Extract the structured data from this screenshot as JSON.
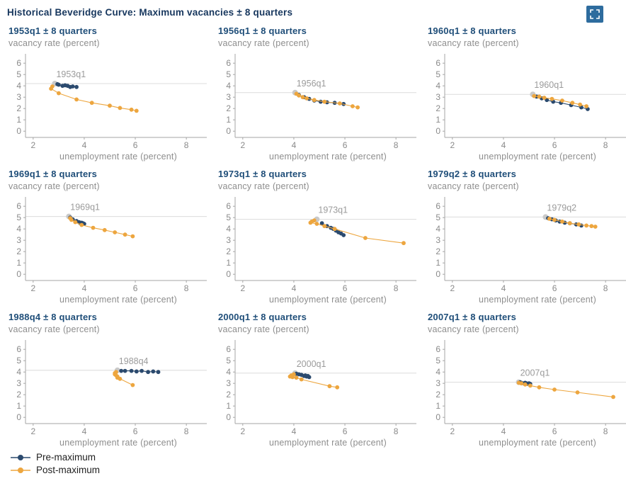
{
  "header": {
    "title": "Historical Beveridge Curve: Maximum vacancies ± 8 quarters"
  },
  "labels": {
    "ylabel": "vacancy rate (percent)",
    "xlabel": "unemployment rate (percent)"
  },
  "legend": {
    "items": [
      {
        "label": "Pre-maximum",
        "color": "#2b4a6e"
      },
      {
        "label": "Post-maximum",
        "color": "#eda63f"
      }
    ]
  },
  "colors": {
    "pre": "#2b4a6e",
    "post": "#eda63f",
    "axis": "#a6a6a6",
    "max_dot": "#c9c9c9",
    "max_line": "#dcdcdc",
    "icon_blue": "#2e6c9e"
  },
  "axes": {
    "x_range": [
      1.7,
      8.8
    ],
    "y_range": [
      -0.55,
      6.7
    ],
    "x_ticks": [
      2,
      4,
      6,
      8
    ],
    "y_ticks": [
      0,
      1,
      2,
      3,
      4,
      5,
      6
    ]
  },
  "chart_data": [
    {
      "type": "line",
      "title": "1953q1 ± 8 quarters",
      "annotation": "1953q1",
      "xlabel": "unemployment rate (percent)",
      "ylabel": "vacancy rate (percent)",
      "max_point": {
        "u": 2.85,
        "v": 4.2
      },
      "series": [
        {
          "name": "Pre-maximum",
          "points": [
            [
              3.7,
              3.9
            ],
            [
              3.55,
              3.95
            ],
            [
              3.45,
              3.9
            ],
            [
              3.35,
              4.0
            ],
            [
              3.25,
              4.05
            ],
            [
              3.15,
              4.0
            ],
            [
              3.0,
              4.1
            ],
            [
              2.95,
              4.15
            ]
          ]
        },
        {
          "name": "Post-maximum",
          "points": [
            [
              2.75,
              3.95
            ],
            [
              2.7,
              3.75
            ],
            [
              3.0,
              3.35
            ],
            [
              3.7,
              2.8
            ],
            [
              4.3,
              2.5
            ],
            [
              5.0,
              2.25
            ],
            [
              5.4,
              2.05
            ],
            [
              5.85,
              1.9
            ],
            [
              6.05,
              1.8
            ]
          ]
        }
      ]
    },
    {
      "type": "line",
      "title": "1956q1 ± 8 quarters",
      "annotation": "1956q1",
      "xlabel": "unemployment rate (percent)",
      "ylabel": "vacancy rate (percent)",
      "max_point": {
        "u": 4.05,
        "v": 3.4
      },
      "series": [
        {
          "name": "Pre-maximum",
          "points": [
            [
              5.95,
              2.4
            ],
            [
              5.6,
              2.5
            ],
            [
              5.3,
              2.55
            ],
            [
              5.05,
              2.6
            ],
            [
              4.8,
              2.7
            ],
            [
              4.6,
              2.85
            ],
            [
              4.4,
              3.0
            ],
            [
              4.2,
              3.2
            ]
          ]
        },
        {
          "name": "Post-maximum",
          "points": [
            [
              4.1,
              3.3
            ],
            [
              4.2,
              3.15
            ],
            [
              4.35,
              3.0
            ],
            [
              4.5,
              2.9
            ],
            [
              4.8,
              2.75
            ],
            [
              5.2,
              2.6
            ],
            [
              5.8,
              2.45
            ],
            [
              6.3,
              2.2
            ],
            [
              6.5,
              2.1
            ]
          ]
        }
      ]
    },
    {
      "type": "line",
      "title": "1960q1 ± 8 quarters",
      "annotation": "1960q1",
      "xlabel": "unemployment rate (percent)",
      "ylabel": "vacancy rate (percent)",
      "max_point": {
        "u": 5.15,
        "v": 3.25
      },
      "series": [
        {
          "name": "Pre-maximum",
          "points": [
            [
              7.3,
              1.95
            ],
            [
              7.05,
              2.1
            ],
            [
              6.65,
              2.3
            ],
            [
              6.25,
              2.5
            ],
            [
              5.95,
              2.6
            ],
            [
              5.7,
              2.75
            ],
            [
              5.5,
              2.9
            ],
            [
              5.3,
              3.05
            ]
          ]
        },
        {
          "name": "Post-maximum",
          "points": [
            [
              5.2,
              3.1
            ],
            [
              5.4,
              3.05
            ],
            [
              5.6,
              2.95
            ],
            [
              5.9,
              2.85
            ],
            [
              6.3,
              2.7
            ],
            [
              6.7,
              2.5
            ],
            [
              7.0,
              2.35
            ],
            [
              7.25,
              2.2
            ]
          ]
        }
      ]
    },
    {
      "type": "line",
      "title": "1969q1 ± 8 quarters",
      "annotation": "1969q1",
      "xlabel": "unemployment rate (percent)",
      "ylabel": "vacancy rate (percent)",
      "max_point": {
        "u": 3.4,
        "v": 5.1
      },
      "series": [
        {
          "name": "Pre-maximum",
          "points": [
            [
              4.0,
              4.45
            ],
            [
              3.95,
              4.5
            ],
            [
              3.9,
              4.55
            ],
            [
              3.85,
              4.5
            ],
            [
              3.8,
              4.6
            ],
            [
              3.7,
              4.7
            ],
            [
              3.55,
              4.85
            ],
            [
              3.45,
              5.0
            ]
          ]
        },
        {
          "name": "Post-maximum",
          "points": [
            [
              3.45,
              4.95
            ],
            [
              3.5,
              4.8
            ],
            [
              3.65,
              4.6
            ],
            [
              3.9,
              4.35
            ],
            [
              4.35,
              4.1
            ],
            [
              4.8,
              3.9
            ],
            [
              5.2,
              3.7
            ],
            [
              5.6,
              3.5
            ],
            [
              5.9,
              3.35
            ]
          ]
        }
      ]
    },
    {
      "type": "line",
      "title": "1973q1 ± 8 quarters",
      "annotation": "1973q1",
      "xlabel": "unemployment rate (percent)",
      "ylabel": "vacancy rate (percent)",
      "max_point": {
        "u": 4.9,
        "v": 4.85
      },
      "series": [
        {
          "name": "Pre-maximum",
          "points": [
            [
              5.95,
              3.45
            ],
            [
              5.85,
              3.6
            ],
            [
              5.75,
              3.7
            ],
            [
              5.65,
              3.85
            ],
            [
              5.55,
              4.0
            ],
            [
              5.45,
              4.1
            ],
            [
              5.3,
              4.25
            ],
            [
              5.1,
              4.5
            ]
          ]
        },
        {
          "name": "Post-maximum",
          "points": [
            [
              4.8,
              4.75
            ],
            [
              4.7,
              4.65
            ],
            [
              4.65,
              4.55
            ],
            [
              4.9,
              4.45
            ],
            [
              5.2,
              4.25
            ],
            [
              5.6,
              4.0
            ],
            [
              6.8,
              3.2
            ],
            [
              8.3,
              2.75
            ]
          ]
        }
      ]
    },
    {
      "type": "line",
      "title": "1979q2 ± 8 quarters",
      "annotation": "1979q2",
      "xlabel": "unemployment rate (percent)",
      "ylabel": "vacancy rate (percent)",
      "max_point": {
        "u": 5.65,
        "v": 5.05
      },
      "series": [
        {
          "name": "Pre-maximum",
          "points": [
            [
              7.05,
              4.3
            ],
            [
              6.85,
              4.4
            ],
            [
              6.6,
              4.5
            ],
            [
              6.4,
              4.55
            ],
            [
              6.2,
              4.65
            ],
            [
              6.05,
              4.75
            ],
            [
              5.9,
              4.85
            ],
            [
              5.75,
              4.95
            ]
          ]
        },
        {
          "name": "Post-maximum",
          "points": [
            [
              5.8,
              4.9
            ],
            [
              6.0,
              4.8
            ],
            [
              6.3,
              4.65
            ],
            [
              6.6,
              4.5
            ],
            [
              6.95,
              4.4
            ],
            [
              7.25,
              4.3
            ],
            [
              7.45,
              4.25
            ],
            [
              7.6,
              4.2
            ]
          ]
        }
      ]
    },
    {
      "type": "line",
      "title": "1988q4 ± 8 quarters",
      "annotation": "1988q4",
      "xlabel": "unemployment rate (percent)",
      "ylabel": "vacancy rate (percent)",
      "max_point": {
        "u": 5.3,
        "v": 4.15
      },
      "series": [
        {
          "name": "Pre-maximum",
          "points": [
            [
              6.9,
              4.0
            ],
            [
              6.7,
              4.05
            ],
            [
              6.5,
              4.0
            ],
            [
              6.25,
              4.1
            ],
            [
              6.05,
              4.05
            ],
            [
              5.85,
              4.1
            ],
            [
              5.6,
              4.1
            ],
            [
              5.45,
              4.1
            ]
          ]
        },
        {
          "name": "Post-maximum",
          "points": [
            [
              5.25,
              4.0
            ],
            [
              5.2,
              3.9
            ],
            [
              5.2,
              3.8
            ],
            [
              5.25,
              3.7
            ],
            [
              5.3,
              3.6
            ],
            [
              5.3,
              3.5
            ],
            [
              5.4,
              3.4
            ],
            [
              5.9,
              2.85
            ]
          ]
        }
      ]
    },
    {
      "type": "line",
      "title": "2000q1 ± 8 quarters",
      "annotation": "2000q1",
      "xlabel": "unemployment rate (percent)",
      "ylabel": "vacancy rate (percent)",
      "max_point": {
        "u": 4.05,
        "v": 3.9
      },
      "series": [
        {
          "name": "Pre-maximum",
          "points": [
            [
              4.6,
              3.55
            ],
            [
              4.55,
              3.65
            ],
            [
              4.5,
              3.6
            ],
            [
              4.45,
              3.7
            ],
            [
              4.4,
              3.65
            ],
            [
              4.3,
              3.75
            ],
            [
              4.2,
              3.8
            ],
            [
              4.1,
              3.85
            ]
          ]
        },
        {
          "name": "Post-maximum",
          "points": [
            [
              4.0,
              3.8
            ],
            [
              3.9,
              3.7
            ],
            [
              3.85,
              3.6
            ],
            [
              3.95,
              3.55
            ],
            [
              4.1,
              3.5
            ],
            [
              4.3,
              3.35
            ],
            [
              5.4,
              2.75
            ],
            [
              5.7,
              2.65
            ]
          ]
        }
      ]
    },
    {
      "type": "line",
      "title": "2007q1 ± 8 quarters",
      "annotation": "2007q1",
      "xlabel": "unemployment rate (percent)",
      "ylabel": "vacancy rate (percent)",
      "max_point": {
        "u": 4.6,
        "v": 3.1
      },
      "series": [
        {
          "name": "Pre-maximum",
          "points": [
            [
              5.05,
              2.95
            ],
            [
              5.0,
              3.0
            ],
            [
              4.95,
              2.95
            ],
            [
              4.9,
              3.0
            ],
            [
              4.85,
              3.05
            ],
            [
              4.8,
              3.0
            ],
            [
              4.7,
              3.05
            ],
            [
              4.65,
              3.1
            ]
          ]
        },
        {
          "name": "Post-maximum",
          "points": [
            [
              4.6,
              3.05
            ],
            [
              4.7,
              3.0
            ],
            [
              4.85,
              2.9
            ],
            [
              5.05,
              2.8
            ],
            [
              5.4,
              2.65
            ],
            [
              6.0,
              2.45
            ],
            [
              6.9,
              2.2
            ],
            [
              8.3,
              1.8
            ]
          ]
        }
      ]
    }
  ]
}
